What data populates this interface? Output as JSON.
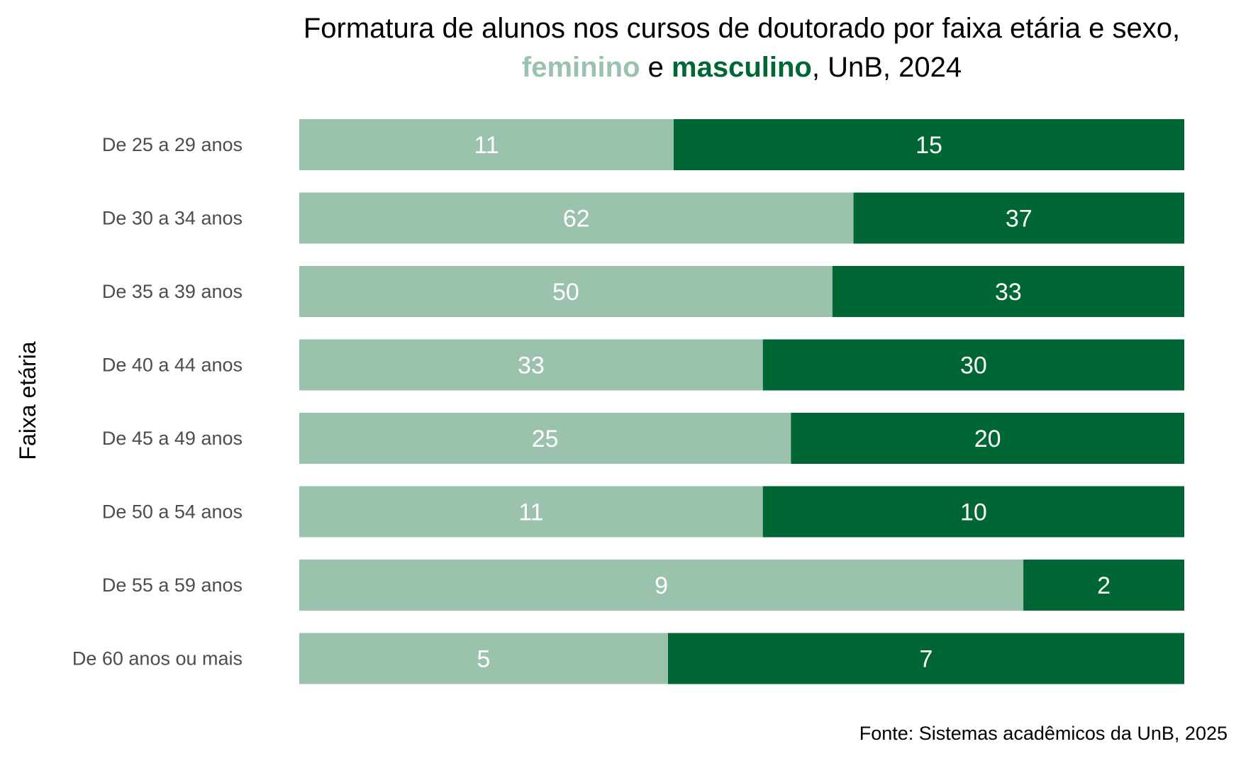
{
  "chart_data": {
    "type": "bar",
    "orientation": "horizontal",
    "stacking": "percent",
    "title": {
      "line1": "Formatura de alunos nos cursos de doutorado por faixa etária e sexo,",
      "female_word": "feminino",
      "connector": " e ",
      "male_word": "masculino",
      "suffix": ", UnB, 2024"
    },
    "ylabel": "Faixa etária",
    "xlabel": "",
    "categories": [
      "De 25 a 29 anos",
      "De 30 a 34 anos",
      "De 35 a 39 anos",
      "De 40 a 44 anos",
      "De 45 a 49 anos",
      "De 50 a 54 anos",
      "De 55 a 59 anos",
      "De 60 anos ou mais"
    ],
    "series": [
      {
        "name": "feminino",
        "color": "#9bc2ad",
        "values": [
          11,
          62,
          50,
          33,
          25,
          11,
          9,
          5
        ]
      },
      {
        "name": "masculino",
        "color": "#006633",
        "values": [
          15,
          37,
          33,
          30,
          20,
          10,
          2,
          7
        ]
      }
    ],
    "grid": false,
    "legend": "none",
    "caption": "Fonte: Sistemas acadêmicos da UnB, 2025"
  }
}
